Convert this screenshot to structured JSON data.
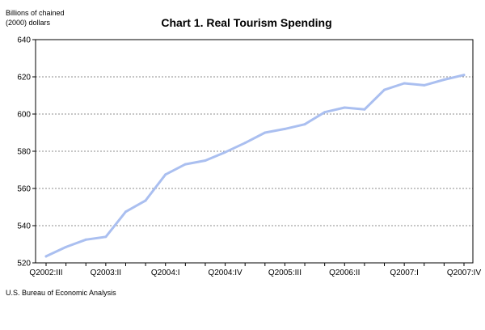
{
  "chart_data": {
    "type": "line",
    "title": "Chart 1. Real Tourism Spending",
    "ylabel_lines": [
      "Billions of chained",
      "(2000) dollars"
    ],
    "xlabel": "",
    "ylim": [
      520,
      640
    ],
    "yticks": [
      520,
      540,
      560,
      580,
      600,
      620,
      640
    ],
    "grid": true,
    "categories": [
      "Q2002:III",
      "Q2002:IV",
      "Q2003:I",
      "Q2003:II",
      "Q2003:III",
      "Q2003:IV",
      "Q2004:I",
      "Q2004:II",
      "Q2004:III",
      "Q2004:IV",
      "Q2005:I",
      "Q2005:II",
      "Q2005:III",
      "Q2005:IV",
      "Q2006:I",
      "Q2006:II",
      "Q2006:III",
      "Q2006:IV",
      "Q2007:I",
      "Q2007:II",
      "Q2007:III",
      "Q2007:IV"
    ],
    "xtick_labels": [
      "Q2002:III",
      "Q2003:II",
      "Q2004:I",
      "Q2004:IV",
      "Q2005:III",
      "Q2006:II",
      "Q2007:I",
      "Q2007:IV"
    ],
    "series": [
      {
        "values": [
          523.5,
          528.5,
          532.5,
          534,
          547.5,
          553.5,
          567.5,
          573,
          575,
          579.5,
          584.5,
          590,
          592,
          594.5,
          601,
          603.5,
          602.5,
          613,
          616.5,
          615.5,
          618.5,
          621
        ],
        "color": "#aabff0"
      }
    ]
  },
  "footer": {
    "source": "U.S. Bureau of Economic Analysis"
  }
}
